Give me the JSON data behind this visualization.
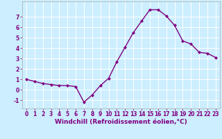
{
  "x": [
    0,
    1,
    2,
    3,
    4,
    5,
    6,
    7,
    8,
    9,
    10,
    11,
    12,
    13,
    14,
    15,
    16,
    17,
    18,
    19,
    20,
    21,
    22,
    23
  ],
  "y": [
    1.0,
    0.8,
    0.6,
    0.5,
    0.4,
    0.4,
    0.3,
    -1.2,
    -0.5,
    0.4,
    1.1,
    2.7,
    4.1,
    5.5,
    6.6,
    7.7,
    7.7,
    7.1,
    6.2,
    4.7,
    4.4,
    3.6,
    3.5,
    3.1
  ],
  "line_color": "#800080",
  "marker": "D",
  "marker_size": 2,
  "background_color": "#cceeff",
  "grid_color": "#ffffff",
  "xlabel": "Windchill (Refroidissement éolien,°C)",
  "ylim": [
    -1.8,
    8.5
  ],
  "xlim": [
    -0.5,
    23.5
  ],
  "yticks": [
    -1,
    0,
    1,
    2,
    3,
    4,
    5,
    6,
    7
  ],
  "xticks": [
    0,
    1,
    2,
    3,
    4,
    5,
    6,
    7,
    8,
    9,
    10,
    11,
    12,
    13,
    14,
    15,
    16,
    17,
    18,
    19,
    20,
    21,
    22,
    23
  ],
  "xlabel_fontsize": 6.5,
  "tick_fontsize": 5.5,
  "line_width": 1.0,
  "spine_color": "#aaaaaa"
}
